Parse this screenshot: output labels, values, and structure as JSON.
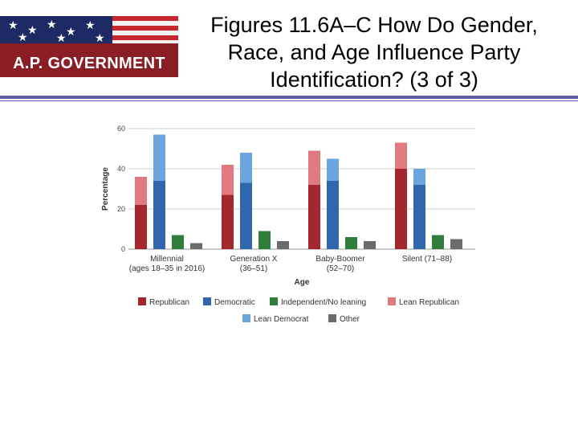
{
  "header": {
    "logo_text": "A.P. GOVERNMENT",
    "title_lines": [
      "Figures 11.6A–C How Do Gender,",
      "Race, and Age Influence Party",
      "Identification? (3 of 3)"
    ]
  },
  "chart_data": {
    "type": "bar",
    "xlabel": "Age",
    "ylabel": "Percentage",
    "ylim": [
      0,
      60
    ],
    "yticks": [
      0,
      20,
      40,
      60
    ],
    "grid": true,
    "legend_position": "bottom",
    "categories": [
      [
        "Millennial",
        "(ages 18–35 in 2016)"
      ],
      [
        "Generation X",
        "(36–51)"
      ],
      [
        "Baby-Boomer",
        "(52–70)"
      ],
      [
        "Silent (71–88)"
      ]
    ],
    "bars_per_category": [
      {
        "stack": [
          "Republican",
          "Lean Republican"
        ]
      },
      {
        "stack": [
          "Democratic",
          "Lean Democrat"
        ]
      },
      {
        "stack": [
          "Independent/No leaning"
        ]
      },
      {
        "stack": [
          "Other"
        ]
      }
    ],
    "series": [
      {
        "name": "Republican",
        "color": "#a3272c",
        "values": [
          22,
          27,
          32,
          40
        ]
      },
      {
        "name": "Democratic",
        "color": "#2f66ad",
        "values": [
          34,
          33,
          34,
          32
        ]
      },
      {
        "name": "Independent/No leaning",
        "color": "#2e7d3a",
        "values": [
          7,
          9,
          6,
          7
        ]
      },
      {
        "name": "Lean Republican",
        "color": "#e07a80",
        "values": [
          14,
          15,
          17,
          13
        ]
      },
      {
        "name": "Lean Democrat",
        "color": "#6aa6dd",
        "values": [
          23,
          15,
          11,
          8
        ]
      },
      {
        "name": "Other",
        "color": "#6b6b6b",
        "values": [
          3,
          4,
          4,
          5
        ]
      }
    ],
    "legend_rows": [
      [
        "Republican",
        "Democratic",
        "Independent/No leaning",
        "Lean Republican"
      ],
      [
        "Lean Democrat",
        "Other"
      ]
    ]
  }
}
